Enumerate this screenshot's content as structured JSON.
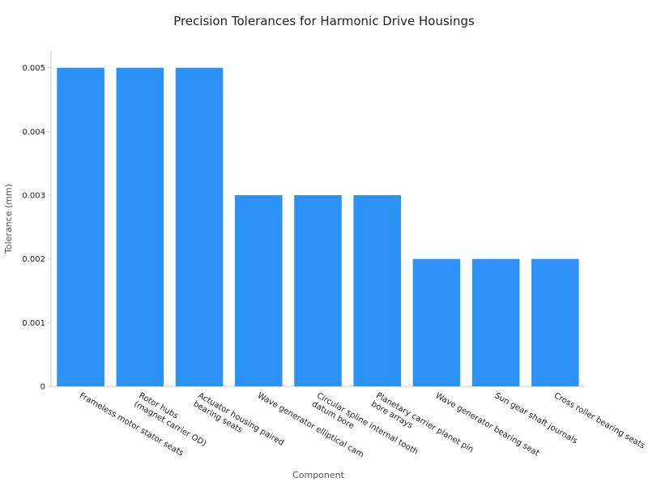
{
  "chart_data": {
    "type": "bar",
    "title": "Precision Tolerances for Harmonic Drive Housings",
    "x_label": "Component",
    "y_label": "Tolerance (mm)",
    "categories": [
      "Frameless motor stator seats",
      "Rotor hubs\n(magnet carrier OD)",
      "Actuator housing paired\nbearing seats",
      "Wave generator elliptical cam",
      "Circular spline internal tooth\ndatum bore",
      "Planetary carrier planet pin\nbore arrays",
      "Wave generator bearing seat",
      "Sun gear shaft journals",
      "Cross roller bearing seats"
    ],
    "values": [
      0.005,
      0.005,
      0.005,
      0.003,
      0.003,
      0.003,
      0.002,
      0.002,
      0.002
    ],
    "color": "#2d92f5",
    "ylim": [
      0,
      0.00525
    ],
    "yticks": [
      0,
      0.001,
      0.002,
      0.003,
      0.004,
      0.005
    ],
    "grid": false
  }
}
